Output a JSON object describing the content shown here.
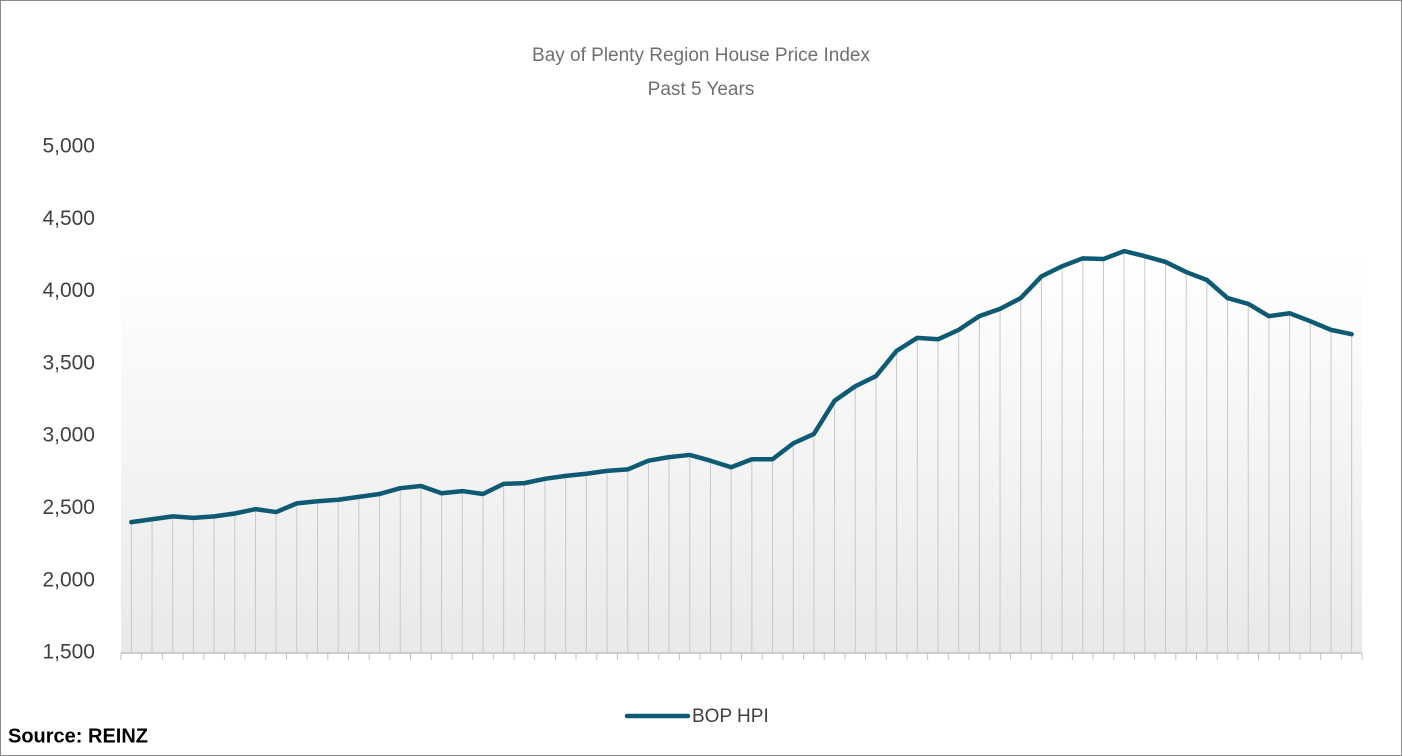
{
  "chart_data": {
    "type": "line",
    "title": "Bay of Plenty Region House Price Index",
    "subtitle": "Past 5 Years",
    "source": "Source: REINZ",
    "categories": [
      null,
      null,
      null,
      null,
      null,
      null,
      null,
      null,
      null,
      null,
      null,
      null,
      null,
      null,
      null,
      null,
      null,
      null,
      null,
      null,
      null,
      null,
      null,
      null,
      null,
      null,
      null,
      null,
      null,
      null,
      null,
      null,
      null,
      null,
      null,
      null,
      null,
      null,
      null,
      null,
      null,
      null,
      null,
      null,
      null,
      null,
      null,
      null,
      null,
      null,
      null,
      null,
      null,
      null,
      null,
      null,
      null,
      null,
      null,
      null
    ],
    "series": [
      {
        "name": "BOP HPI",
        "color": "#0f5a73",
        "values": [
          2405,
          2425,
          2445,
          2435,
          2445,
          2465,
          2495,
          2475,
          2535,
          2550,
          2560,
          2580,
          2600,
          2640,
          2655,
          2605,
          2620,
          2600,
          2670,
          2675,
          2705,
          2725,
          2740,
          2760,
          2770,
          2830,
          2855,
          2870,
          2830,
          2785,
          2840,
          2840,
          2950,
          3015,
          3245,
          3345,
          3415,
          3590,
          3680,
          3670,
          3735,
          3830,
          3880,
          3955,
          4105,
          4175,
          4230,
          4225,
          4280,
          4245,
          4205,
          4135,
          4080,
          3955,
          3915,
          3830,
          3850,
          3795,
          3735,
          3705
        ]
      }
    ],
    "ylim": [
      1500,
      5000
    ],
    "yticks": [
      {
        "value": 1500,
        "label": "1,500"
      },
      {
        "value": 2000,
        "label": "2,000"
      },
      {
        "value": 2500,
        "label": "2,500"
      },
      {
        "value": 3000,
        "label": "3,000"
      },
      {
        "value": 3500,
        "label": "3,500"
      },
      {
        "value": 4000,
        "label": "4,000"
      },
      {
        "value": 4500,
        "label": "4,500"
      },
      {
        "value": 5000,
        "label": "5,000"
      }
    ],
    "grid": false,
    "drop_lines": true,
    "legend": "bottom"
  }
}
